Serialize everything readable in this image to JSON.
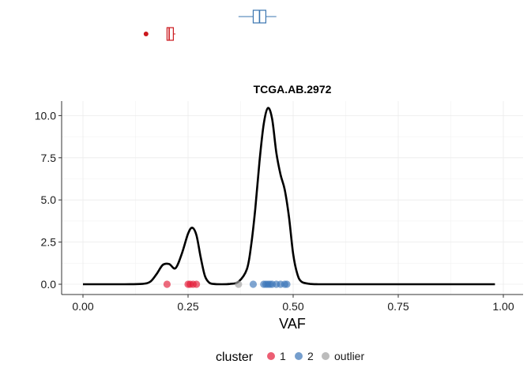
{
  "chart_data": {
    "type": "density",
    "title": "TCGA.AB.2972",
    "xlabel": "VAF",
    "ylabel": "",
    "xlim": [
      0,
      1
    ],
    "ylim": [
      0,
      10.5
    ],
    "x_ticks": [
      "0.00",
      "0.25",
      "0.50",
      "0.75",
      "1.00"
    ],
    "x_tick_values": [
      0,
      0.25,
      0.5,
      0.75,
      1.0
    ],
    "y_ticks": [
      "0.0",
      "2.5",
      "5.0",
      "7.5",
      "10.0"
    ],
    "y_tick_values": [
      0,
      2.5,
      5.0,
      7.5,
      10.0
    ],
    "grid": true,
    "density_curve": {
      "color": "#000000",
      "x": [
        0.0,
        0.1,
        0.14,
        0.16,
        0.175,
        0.19,
        0.205,
        0.22,
        0.235,
        0.25,
        0.26,
        0.27,
        0.28,
        0.29,
        0.3,
        0.31,
        0.33,
        0.35,
        0.37,
        0.39,
        0.4,
        0.41,
        0.42,
        0.43,
        0.44,
        0.45,
        0.46,
        0.47,
        0.48,
        0.49,
        0.5,
        0.51,
        0.52,
        0.54,
        0.56,
        0.6,
        0.8,
        0.98
      ],
      "y": [
        0.0,
        0.0,
        0.02,
        0.15,
        0.6,
        1.15,
        1.2,
        0.95,
        1.8,
        3.0,
        3.35,
        2.9,
        1.6,
        0.5,
        0.1,
        0.02,
        0.0,
        0.02,
        0.15,
        0.9,
        2.3,
        4.5,
        7.3,
        9.5,
        10.45,
        9.8,
        7.8,
        6.5,
        5.6,
        4.0,
        1.8,
        0.6,
        0.15,
        0.02,
        0.0,
        0.0,
        0.0,
        0.0
      ]
    },
    "points": [
      {
        "cluster": "1",
        "vafs": [
          0.2,
          0.25,
          0.255,
          0.262,
          0.27
        ]
      },
      {
        "cluster": "2",
        "vafs": [
          0.405,
          0.43,
          0.435,
          0.44,
          0.445,
          0.45,
          0.46,
          0.47,
          0.48,
          0.485
        ]
      },
      {
        "cluster": "outlier",
        "vafs": [
          0.37
        ]
      }
    ],
    "boxplots": [
      {
        "cluster": "1",
        "color": "#cb181d",
        "q1": 0.2,
        "median": 0.205,
        "q3": 0.215,
        "whisker_low": 0.2,
        "whisker_high": 0.22,
        "outliers": [
          0.15
        ]
      },
      {
        "cluster": "2",
        "color": "#3a75b0",
        "q1": 0.405,
        "median": 0.42,
        "q3": 0.435,
        "whisker_low": 0.37,
        "whisker_high": 0.46,
        "outliers": []
      }
    ],
    "legend": {
      "title": "cluster",
      "position": "bottom",
      "entries": [
        {
          "label": "1",
          "color": "#e41a38"
        },
        {
          "label": "2",
          "color": "#3a75b8"
        },
        {
          "label": "outlier",
          "color": "#a0a0a0"
        }
      ]
    }
  }
}
